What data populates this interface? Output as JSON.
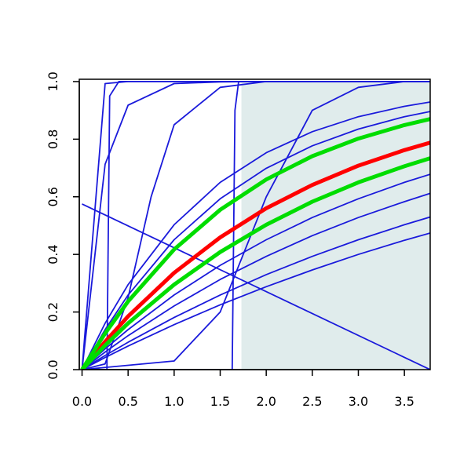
{
  "chart_data": {
    "type": "line",
    "x": [
      0,
      0.25,
      0.5,
      1,
      1.5,
      2,
      2.5,
      3,
      3.5,
      3.78
    ],
    "xlim": [
      -0.03,
      3.78
    ],
    "ylim": [
      0,
      1.008
    ],
    "xticks": [
      {
        "value": 0,
        "label": "0.0"
      },
      {
        "value": 0.5,
        "label": "0.5"
      },
      {
        "value": 1,
        "label": "1.0"
      },
      {
        "value": 1.5,
        "label": "1.5"
      },
      {
        "value": 2,
        "label": "2.0"
      },
      {
        "value": 2.5,
        "label": "2.5"
      },
      {
        "value": 3,
        "label": "3.0"
      },
      {
        "value": 3.5,
        "label": "3.5"
      }
    ],
    "yticks": [
      {
        "value": 0,
        "label": "0.0"
      },
      {
        "value": 0.2,
        "label": "0.2"
      },
      {
        "value": 0.4,
        "label": "0.4"
      },
      {
        "value": 0.6,
        "label": "0.6"
      },
      {
        "value": 0.8,
        "label": "0.8"
      },
      {
        "value": 1,
        "label": "1.0"
      }
    ],
    "shaded_region": {
      "xlim": [
        1.73,
        3.78
      ],
      "ylim": [
        0,
        1
      ],
      "color": "#e0ecec"
    },
    "series": [
      {
        "color": "#1a1adb",
        "width": 1.8,
        "values": [
          0,
          0.161,
          0.295,
          0.503,
          0.65,
          0.753,
          0.826,
          0.878,
          0.914,
          0.929
        ]
      },
      {
        "color": "#1a1adb",
        "width": 1.8,
        "values": [
          0,
          0.139,
          0.259,
          0.451,
          0.593,
          0.699,
          0.777,
          0.835,
          0.878,
          0.896
        ]
      },
      {
        "color": "#1a1adb",
        "width": 1.8,
        "values": [
          0,
          0.072,
          0.139,
          0.259,
          0.362,
          0.451,
          0.528,
          0.593,
          0.65,
          0.678
        ]
      },
      {
        "color": "#1a1adb",
        "width": 1.8,
        "values": [
          0,
          0.061,
          0.118,
          0.221,
          0.313,
          0.393,
          0.465,
          0.528,
          0.583,
          0.612
        ]
      },
      {
        "color": "#1a1adb",
        "width": 1.8,
        "values": [
          0,
          0.049,
          0.095,
          0.181,
          0.259,
          0.33,
          0.393,
          0.451,
          0.503,
          0.53
        ]
      },
      {
        "color": "#1a1adb",
        "width": 1.8,
        "values": [
          0,
          0.042,
          0.082,
          0.156,
          0.225,
          0.288,
          0.346,
          0.4,
          0.449,
          0.474
        ]
      },
      {
        "color": "#1a1adb",
        "width": 1.8,
        "values": [
          0,
          0.993,
          1,
          1,
          1,
          1,
          1,
          1,
          1,
          1
        ]
      },
      {
        "color": "#1a1adb",
        "width": 1.8,
        "values": [
          0,
          0.713,
          0.918,
          0.993,
          0.999,
          1,
          1,
          1,
          1,
          1
        ]
      },
      {
        "color": "#1a1adb",
        "width": 1.8,
        "x": [
          0,
          0.27,
          0.3,
          0.4,
          3.78
        ],
        "values": [
          0,
          0,
          0.95,
          1,
          1
        ]
      },
      {
        "color": "#1a1adb",
        "width": 1.8,
        "x": [
          0,
          1.63,
          1.66,
          1.7,
          3.78
        ],
        "values": [
          0,
          0,
          0.9,
          1,
          1
        ]
      },
      {
        "color": "#1a1adb",
        "width": 1.8,
        "x": [
          0,
          1,
          1.5,
          2,
          2.5,
          3,
          3.5,
          3.78
        ],
        "values": [
          0,
          0.03,
          0.2,
          0.6,
          0.9,
          0.98,
          1,
          1
        ]
      },
      {
        "color": "#1a1adb",
        "width": 1.8,
        "x": [
          0,
          0.25,
          0.5,
          0.75,
          1,
          1.5,
          2,
          2.5
        ],
        "values": [
          0,
          0.02,
          0.25,
          0.6,
          0.85,
          0.98,
          1,
          1
        ]
      },
      {
        "color": "#1a1adb",
        "width": 1.8,
        "x": [
          0,
          3.78
        ],
        "values": [
          0.575,
          0
        ]
      },
      {
        "color": "#ff0000",
        "width": 5,
        "values": [
          0,
          0.097,
          0.185,
          0.336,
          0.459,
          0.56,
          0.641,
          0.708,
          0.762,
          0.788
        ]
      },
      {
        "color": "#00dd00",
        "width": 5,
        "values": [
          0,
          0.126,
          0.237,
          0.417,
          0.555,
          0.66,
          0.741,
          0.802,
          0.849,
          0.87
        ]
      },
      {
        "color": "#00dd00",
        "width": 5,
        "values": [
          0,
          0.084,
          0.161,
          0.295,
          0.408,
          0.503,
          0.583,
          0.65,
          0.706,
          0.734
        ]
      }
    ]
  }
}
